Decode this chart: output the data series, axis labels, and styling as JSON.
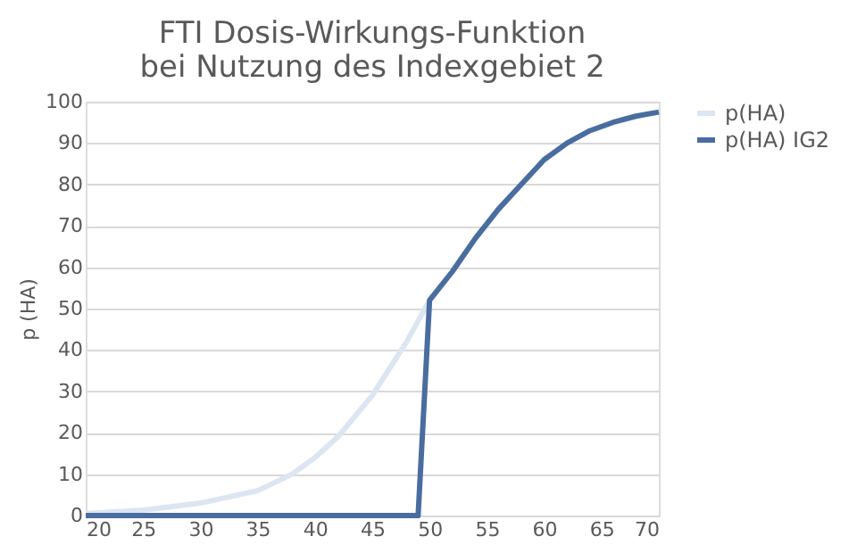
{
  "chart_data": {
    "type": "line",
    "title": [
      "FTI Dosis-Wirkungs-Funktion",
      "bei Nutzung des Indexgebiet 2"
    ],
    "ylabel": "p (HA)",
    "xlim": [
      20,
      70
    ],
    "xticks": [
      20,
      25,
      30,
      35,
      40,
      45,
      50,
      55,
      60,
      65,
      70
    ],
    "ylim": [
      0,
      100
    ],
    "yticks": [
      0,
      10,
      20,
      30,
      40,
      50,
      60,
      70,
      80,
      90,
      100
    ],
    "grid": "y",
    "legend": "right",
    "marker": "none",
    "line_style": "solid",
    "series": [
      {
        "name": "p(HA)",
        "color": "#dce6f2",
        "x": [
          20,
          25,
          30,
          35,
          38,
          40,
          42,
          45,
          48,
          50
        ],
        "values": [
          0.5,
          1.3,
          3,
          6,
          10,
          14,
          19,
          29,
          42,
          52
        ]
      },
      {
        "name": "p(HA) IG2",
        "color": "#4a6da0",
        "x": [
          20,
          49,
          50,
          52,
          54,
          56,
          58,
          60,
          62,
          64,
          66,
          68,
          70
        ],
        "values": [
          0,
          0,
          52,
          59,
          67,
          74,
          80,
          86,
          90,
          93,
          95,
          96.5,
          97.5
        ]
      }
    ]
  }
}
